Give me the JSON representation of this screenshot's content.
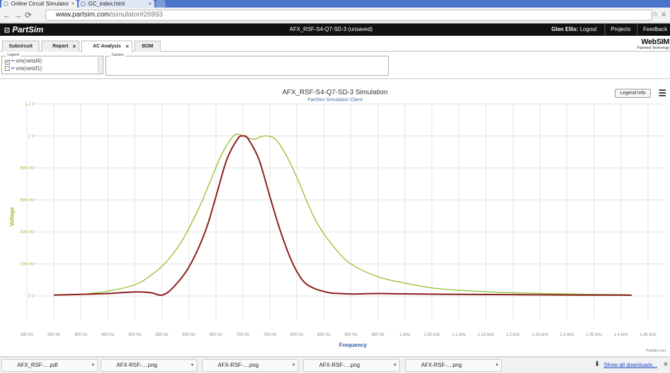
{
  "browser": {
    "tabs": [
      {
        "label": "Online Circuit Simulator"
      },
      {
        "label": "GC_index.html"
      }
    ],
    "url_host": "www.partsim.com",
    "url_path": "/simulator#26993",
    "back_icon": "back-arrow-icon",
    "forward_icon": "forward-arrow-icon",
    "reload_icon": "reload-icon"
  },
  "app": {
    "logo": "PartSim",
    "title": "AFX_RSF-S4-Q7-SD-3 (unsaved)",
    "user": "Glen Ellis:",
    "logout": "Logout",
    "projects": "Projects",
    "feedback": "Feedback",
    "brand": "WebSIM",
    "brand_sub": "Patented Technology"
  },
  "tabs": [
    {
      "label": "Subcircuit",
      "closable": false,
      "active": false
    },
    {
      "label": "Report",
      "closable": true,
      "active": false
    },
    {
      "label": "AC Analysis",
      "closable": true,
      "active": true
    },
    {
      "label": "BOM",
      "closable": false,
      "active": false
    }
  ],
  "legend": {
    "caption": "Legend",
    "items": [
      {
        "label": "vm(netsf4)",
        "checked": true,
        "color": "#6f9ed6"
      },
      {
        "label": "vm(netsf1)",
        "checked": false,
        "color": "#6f9ed6"
      }
    ]
  },
  "cursors": {
    "caption": "Cursors"
  },
  "chart_controls": {
    "legend_info": "Legend Info",
    "credit": "PartSim.com"
  },
  "chart_data": {
    "type": "line",
    "title": "AFX_RSF-S4-Q7-SD-3 Simulation",
    "subtitle": "PartSim Simulation Client",
    "xlabel": "Frequency",
    "ylabel": "Voltage",
    "xlim": [
      300,
      1450
    ],
    "ylim": [
      0,
      1.2
    ],
    "grid": true,
    "x_ticks": [
      "300 Hz",
      "350 Hz",
      "400 Hz",
      "450 Hz",
      "500 Hz",
      "550 Hz",
      "600 Hz",
      "650 Hz",
      "700 Hz",
      "750 Hz",
      "800 Hz",
      "850 Hz",
      "900 Hz",
      "950 Hz",
      "1 kHz",
      "1.05 kHz",
      "1.1 kHz",
      "1.15 kHz",
      "1.2 kHz",
      "1.25 kHz",
      "1.3 kHz",
      "1.35 kHz",
      "1.4 kHz",
      "1.45 kHz"
    ],
    "y_ticks": [
      "0 V",
      "200 mV",
      "400 mV",
      "600 mV",
      "800 mV",
      "1 V",
      "1.2 V"
    ],
    "series": [
      {
        "color": "#8fbc2a",
        "x": [
          350,
          400,
          450,
          500,
          530,
          560,
          590,
          620,
          640,
          660,
          680,
          690,
          700,
          720,
          740,
          760,
          780,
          800,
          820,
          840,
          870,
          900,
          950,
          1000,
          1050,
          1100,
          1200,
          1300,
          1400,
          1420
        ],
        "y": [
          0.005,
          0.01,
          0.03,
          0.07,
          0.13,
          0.22,
          0.36,
          0.56,
          0.72,
          0.88,
          0.99,
          1.01,
          1.0,
          0.98,
          1.0,
          0.98,
          0.88,
          0.74,
          0.58,
          0.44,
          0.3,
          0.2,
          0.12,
          0.08,
          0.05,
          0.035,
          0.02,
          0.012,
          0.008,
          0.006
        ]
      },
      {
        "color": "#8b1a1a",
        "x": [
          350,
          400,
          450,
          500,
          530,
          550,
          570,
          600,
          630,
          650,
          670,
          690,
          700,
          710,
          730,
          750,
          770,
          790,
          810,
          830,
          860,
          880,
          900,
          920,
          950,
          1000,
          1100,
          1200,
          1300,
          1400,
          1420
        ],
        "y": [
          0.005,
          0.01,
          0.015,
          0.025,
          0.02,
          0.005,
          0.05,
          0.18,
          0.4,
          0.62,
          0.85,
          0.98,
          1.0,
          0.98,
          0.85,
          0.62,
          0.4,
          0.22,
          0.1,
          0.05,
          0.02,
          0.015,
          0.012,
          0.013,
          0.015,
          0.013,
          0.01,
          0.008,
          0.006,
          0.005,
          0.004
        ]
      }
    ]
  },
  "downloads": {
    "items": [
      {
        "label": "AFX_RSF-....pdf"
      },
      {
        "label": "AFX-RSF-....png"
      },
      {
        "label": "AFX-RSF-....png"
      },
      {
        "label": "AFX-RSF-....png"
      },
      {
        "label": "AFX-RSF-....png"
      }
    ],
    "show_all": "Show all downloads..."
  }
}
